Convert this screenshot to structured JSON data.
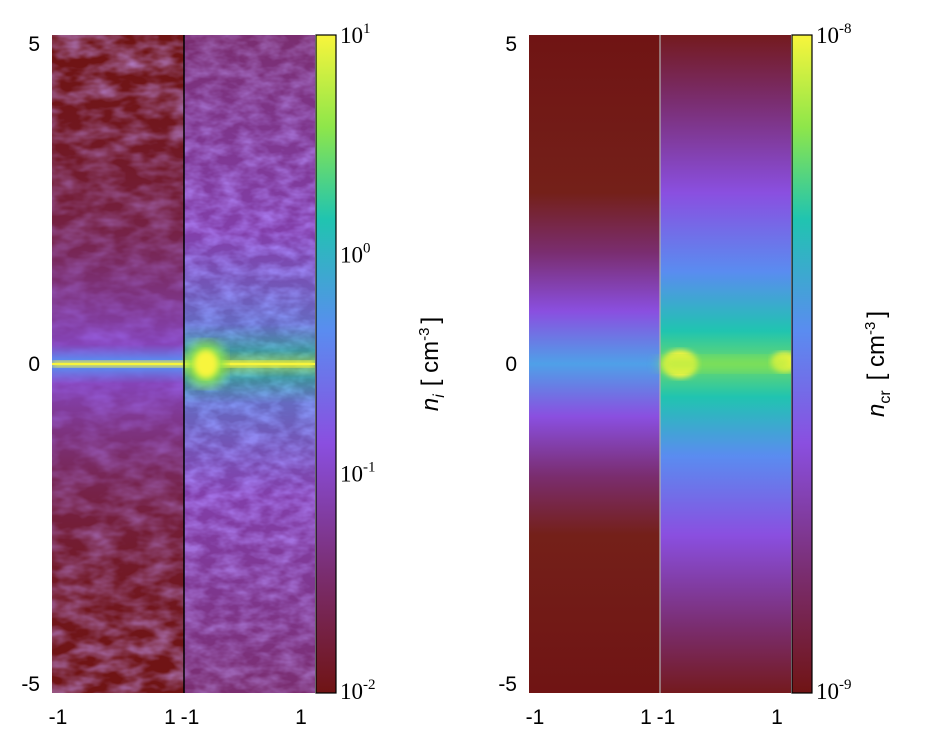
{
  "chart_data": [
    {
      "type": "heatmap",
      "panels": 2,
      "x_ticks": [
        "-1",
        "1",
        "-1",
        "1"
      ],
      "y_ticks": [
        "5",
        "0",
        "-5"
      ],
      "xlim": [
        -1,
        1
      ],
      "ylim": [
        -5,
        5
      ],
      "colorbar": {
        "scale": "log",
        "range": [
          0.01,
          10
        ],
        "ticks": [
          {
            "base": "10",
            "exp": "1"
          },
          {
            "base": "10",
            "exp": "0"
          },
          {
            "base": "10",
            "exp": "-1"
          },
          {
            "base": "10",
            "exp": "-2"
          }
        ],
        "label": {
          "symbol": "n",
          "sub": "i",
          "unit_pre": "[ cm",
          "unit_exp": "-3",
          "unit_post": "]"
        }
      },
      "colormap": [
        "#701414",
        "#7a2d6f",
        "#8a4fe0",
        "#5a8cf0",
        "#20c4b0",
        "#8ee64a",
        "#f8f53c"
      ]
    },
    {
      "type": "heatmap",
      "panels": 2,
      "x_ticks": [
        "-1",
        "1",
        "-1",
        "1"
      ],
      "y_ticks": [
        "5",
        "0",
        "-5"
      ],
      "xlim": [
        -1,
        1
      ],
      "ylim": [
        -5,
        5
      ],
      "colorbar": {
        "scale": "log",
        "range": [
          1e-09,
          1e-08
        ],
        "ticks": [
          {
            "base": "10",
            "exp": "-8"
          },
          {
            "base": "10",
            "exp": "-9"
          }
        ],
        "label": {
          "symbol": "n",
          "sub": "cr",
          "unit_pre": "[ cm",
          "unit_exp": "-3",
          "unit_post": "]"
        }
      },
      "colormap": [
        "#701414",
        "#7a2d6f",
        "#8a4fe0",
        "#5a8cf0",
        "#20c4b0",
        "#8ee64a",
        "#f8f53c"
      ]
    }
  ]
}
